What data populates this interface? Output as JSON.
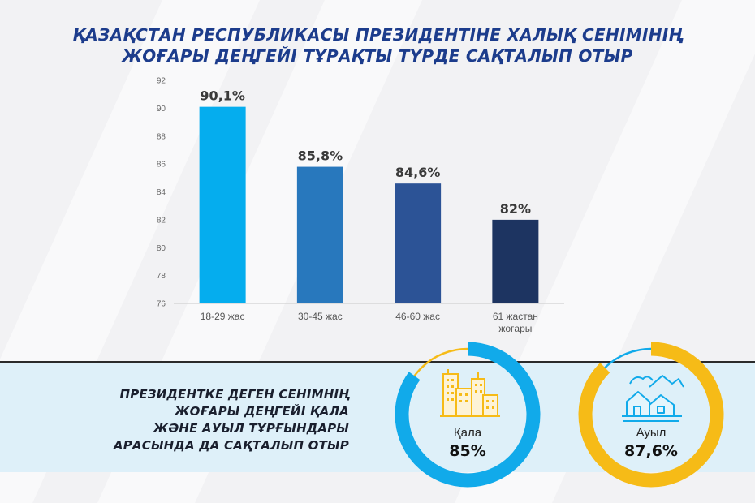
{
  "title": {
    "line1": "ҚАЗАҚСТАН РЕСПУБЛИКАСЫ ПРЕЗИДЕНТІНЕ ХАЛЫҚ СЕНІМІНІҢ",
    "line2": "ЖОҒАРЫ ДЕҢГЕЙІ ТҰРАҚТЫ ТҮРДЕ САҚТАЛЫП ОТЫР"
  },
  "chart_data": {
    "type": "bar",
    "categories": [
      "18-29 жас",
      "30-45 жас",
      "46-60 жас",
      "61 жастан жоғары"
    ],
    "category_lines": [
      [
        "18-29 жас"
      ],
      [
        "30-45 жас"
      ],
      [
        "46-60 жас"
      ],
      [
        "61 жастан",
        "жоғары"
      ]
    ],
    "values": [
      90.1,
      85.8,
      84.6,
      82
    ],
    "data_labels": [
      "90,1%",
      "85,8%",
      "84,6%",
      "82%"
    ],
    "ylim": [
      76,
      92
    ],
    "yticks": [
      76,
      78,
      80,
      82,
      84,
      86,
      88,
      90,
      92
    ],
    "colors": [
      "#05adee",
      "#2878bd",
      "#2c5396",
      "#1d3461"
    ],
    "grid": false,
    "legend": "none"
  },
  "subtitle": {
    "lines": [
      "ПРЕЗИДЕНТКЕ ДЕГЕН СЕНІМНІҢ",
      "ЖОҒАРЫ ДЕҢГЕЙІ ҚАЛА",
      "ЖӘНЕ АУЫЛ ТҰРҒЫНДАРЫ",
      "АРАСЫНДА ДА САҚТАЛЫП ОТЫР"
    ]
  },
  "donuts": [
    {
      "label": "Қала",
      "value_text": "85%",
      "value": 85,
      "color": "#11aaea",
      "rest_color": "#f6bb17",
      "icon": "city-buildings-icon",
      "icon_color": "#f6bb17"
    },
    {
      "label": "Ауыл",
      "value_text": "87,6%",
      "value": 87.6,
      "color": "#f6bb17",
      "rest_color": "#11aaea",
      "icon": "village-houses-icon",
      "icon_color": "#11aaea"
    }
  ]
}
